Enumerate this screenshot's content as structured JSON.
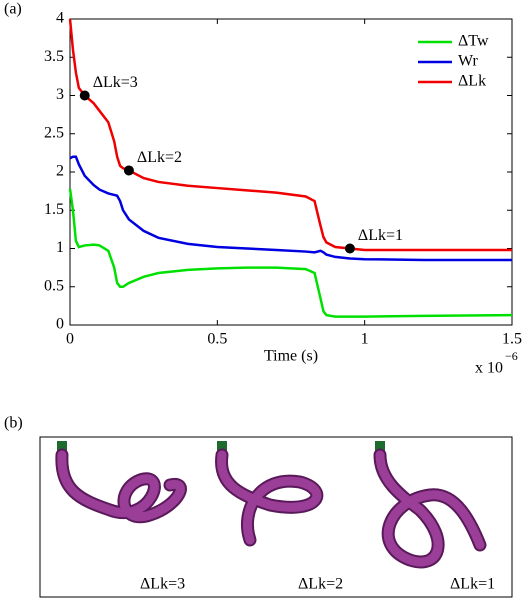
{
  "chart_data": {
    "type": "line",
    "panel_label": "(a)",
    "xlabel": "Time (s)",
    "x_multiplier": {
      "base": "x 10",
      "exponent": "−6"
    },
    "xlim": [
      0,
      1.5
    ],
    "xticks": [
      0,
      0.5,
      1,
      1.5
    ],
    "ylim": [
      0,
      4
    ],
    "yticks": [
      0,
      0.5,
      1,
      1.5,
      2,
      2.5,
      3,
      3.5,
      4
    ],
    "legend": "top-right",
    "x": [
      0,
      0.01,
      0.02,
      0.03,
      0.05,
      0.08,
      0.1,
      0.13,
      0.15,
      0.16,
      0.17,
      0.18,
      0.2,
      0.25,
      0.3,
      0.4,
      0.5,
      0.6,
      0.7,
      0.8,
      0.83,
      0.85,
      0.86,
      0.87,
      0.9,
      0.95,
      1.0,
      1.2,
      1.5
    ],
    "series": [
      {
        "name": "ΔTw",
        "color": "#00e000",
        "values": [
          1.78,
          1.5,
          1.1,
          1.02,
          1.04,
          1.05,
          1.04,
          0.97,
          0.75,
          0.55,
          0.5,
          0.5,
          0.55,
          0.63,
          0.68,
          0.72,
          0.74,
          0.75,
          0.75,
          0.73,
          0.68,
          0.35,
          0.18,
          0.13,
          0.11,
          0.11,
          0.11,
          0.12,
          0.13
        ]
      },
      {
        "name": "Wr",
        "color": "#0000e0",
        "values": [
          2.18,
          2.2,
          2.2,
          2.1,
          1.95,
          1.83,
          1.77,
          1.72,
          1.7,
          1.69,
          1.62,
          1.5,
          1.38,
          1.23,
          1.14,
          1.06,
          1.02,
          1.0,
          0.98,
          0.96,
          0.95,
          0.97,
          0.95,
          0.92,
          0.89,
          0.87,
          0.86,
          0.85,
          0.85
        ]
      },
      {
        "name": "ΔLk",
        "color": "#f00000",
        "values": [
          4.0,
          3.6,
          3.3,
          3.1,
          3.0,
          2.9,
          2.8,
          2.65,
          2.4,
          2.2,
          2.08,
          2.05,
          2.02,
          1.92,
          1.87,
          1.82,
          1.79,
          1.76,
          1.73,
          1.68,
          1.62,
          1.3,
          1.15,
          1.08,
          1.02,
          1.0,
          0.98,
          0.98,
          0.98
        ]
      }
    ],
    "annotations": [
      {
        "text": "ΔLk=3",
        "x": 0.05,
        "y": 3.0
      },
      {
        "text": "ΔLk=2",
        "x": 0.2,
        "y": 2.02
      },
      {
        "text": "ΔLk=1",
        "x": 0.95,
        "y": 1.0
      }
    ]
  },
  "panel_b": {
    "panel_label": "(b)",
    "labels": [
      "ΔLk=3",
      "ΔLk=2",
      "ΔLk=1"
    ]
  }
}
